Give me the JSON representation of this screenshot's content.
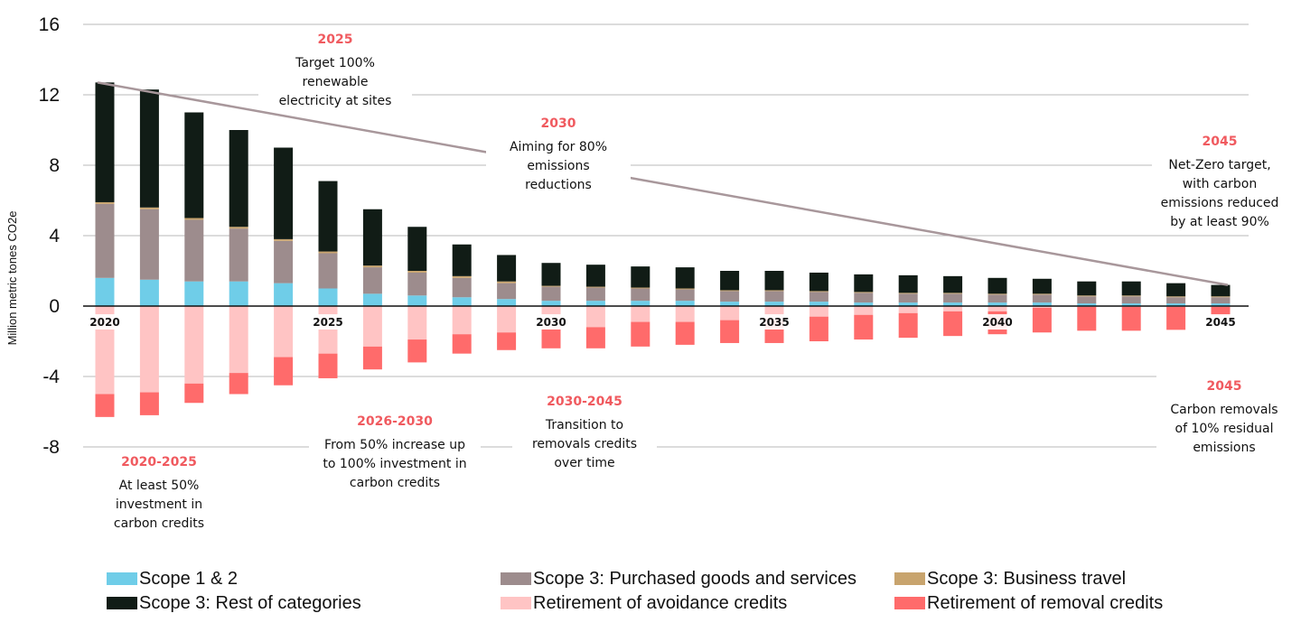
{
  "chart_data": {
    "type": "bar",
    "stacked": true,
    "ylabel": "Million metric tones CO2e",
    "ylim": [
      -8,
      16
    ],
    "yticks": [
      16,
      12,
      8,
      4,
      0,
      -4,
      -8
    ],
    "grid": true,
    "x": [
      2020,
      2021,
      2022,
      2023,
      2024,
      2025,
      2026,
      2027,
      2028,
      2029,
      2030,
      2031,
      2032,
      2033,
      2034,
      2035,
      2036,
      2037,
      2038,
      2039,
      2040,
      2041,
      2042,
      2043,
      2044,
      2045
    ],
    "x_labels": [
      {
        "x": 2020,
        "label": "2020"
      },
      {
        "x": 2025,
        "label": "2025"
      },
      {
        "x": 2030,
        "label": "2030"
      },
      {
        "x": 2035,
        "label": "2035"
      },
      {
        "x": 2040,
        "label": "2040"
      },
      {
        "x": 2045,
        "label": "2045"
      }
    ],
    "series": [
      {
        "name": "Scope 1 & 2",
        "color": "#6fcde8",
        "values": [
          1.6,
          1.5,
          1.4,
          1.4,
          1.3,
          1.0,
          0.7,
          0.6,
          0.5,
          0.4,
          0.3,
          0.3,
          0.3,
          0.3,
          0.25,
          0.25,
          0.25,
          0.2,
          0.2,
          0.2,
          0.2,
          0.2,
          0.15,
          0.15,
          0.15,
          0.15
        ]
      },
      {
        "name": "Scope 3: Purchased goods and services",
        "color": "#9d8c8d",
        "values": [
          4.2,
          4.0,
          3.5,
          3.0,
          2.4,
          2.0,
          1.5,
          1.3,
          1.1,
          0.9,
          0.8,
          0.75,
          0.7,
          0.65,
          0.6,
          0.6,
          0.55,
          0.55,
          0.5,
          0.5,
          0.45,
          0.45,
          0.4,
          0.4,
          0.35,
          0.35
        ]
      },
      {
        "name": "Scope 3: Business travel",
        "color": "#c8a46e",
        "values": [
          0.1,
          0.1,
          0.1,
          0.1,
          0.1,
          0.1,
          0.1,
          0.1,
          0.1,
          0.1,
          0.05,
          0.05,
          0.05,
          0.05,
          0.05,
          0.05,
          0.05,
          0.05,
          0.05,
          0.05,
          0.05,
          0.05,
          0.05,
          0.05,
          0.05,
          0.05
        ]
      },
      {
        "name": "Scope 3: Rest of categories",
        "color": "#111c16",
        "values": [
          6.8,
          6.7,
          6.0,
          5.5,
          5.2,
          4.0,
          3.2,
          2.5,
          1.8,
          1.5,
          1.3,
          1.25,
          1.2,
          1.2,
          1.1,
          1.1,
          1.05,
          1.0,
          1.0,
          0.95,
          0.9,
          0.85,
          0.8,
          0.8,
          0.75,
          0.65
        ]
      },
      {
        "name": "Retirement of avoidance credits",
        "color": "#ffc4c4",
        "values": [
          -5.0,
          -4.9,
          -4.4,
          -3.8,
          -2.9,
          -2.7,
          -2.3,
          -1.9,
          -1.6,
          -1.5,
          -1.3,
          -1.2,
          -0.9,
          -0.9,
          -0.8,
          -0.7,
          -0.6,
          -0.5,
          -0.4,
          -0.3,
          -0.3,
          -0.1,
          -0.05,
          -0.05,
          -0.05,
          -0.05
        ]
      },
      {
        "name": "Retirement of removal credits",
        "color": "#ff6b6b",
        "values": [
          -1.3,
          -1.3,
          -1.1,
          -1.2,
          -1.6,
          -1.4,
          -1.3,
          -1.3,
          -1.1,
          -1.0,
          -1.1,
          -1.2,
          -1.4,
          -1.3,
          -1.3,
          -1.4,
          -1.4,
          -1.4,
          -1.4,
          -1.4,
          -1.3,
          -1.4,
          -1.35,
          -1.35,
          -1.3,
          -0.5
        ]
      }
    ],
    "trend_line": {
      "from": [
        2020,
        12.7
      ],
      "to": [
        2045,
        1.2
      ],
      "color": "#a8979b"
    },
    "annotations": [
      {
        "year": "2025",
        "lines": [
          "Target 100%",
          "renewable",
          "electricity at sites"
        ]
      },
      {
        "year": "2030",
        "lines": [
          "Aiming for 80%",
          "emissions",
          "reductions"
        ]
      },
      {
        "year": "2045",
        "lines": [
          "Net-Zero target,",
          "with carbon",
          "emissions reduced",
          "by at least 90%"
        ]
      },
      {
        "year": "2020-2025",
        "lines": [
          "At least 50%",
          "investment in",
          "carbon credits"
        ]
      },
      {
        "year": "2026-2030",
        "lines": [
          "From 50% increase up",
          "to 100% investment in",
          "carbon credits"
        ]
      },
      {
        "year": "2030-2045",
        "lines": [
          "Transition to",
          "removals credits",
          "over time"
        ]
      },
      {
        "year": "2045",
        "lines": [
          "Carbon removals",
          "of 10% residual",
          "emissions"
        ]
      }
    ],
    "legend": {
      "placement": "bottom",
      "entries": [
        {
          "label": "Scope 1 & 2",
          "color": "#6fcde8"
        },
        {
          "label": "Scope 3: Purchased goods and services",
          "color": "#9d8c8d"
        },
        {
          "label": "Scope 3: Business travel",
          "color": "#c8a46e"
        },
        {
          "label": "Scope 3: Rest of categories",
          "color": "#111c16"
        },
        {
          "label": "Retirement of avoidance credits",
          "color": "#ffc4c4"
        },
        {
          "label": "Retirement of removal credits",
          "color": "#ff6b6b"
        }
      ]
    }
  }
}
